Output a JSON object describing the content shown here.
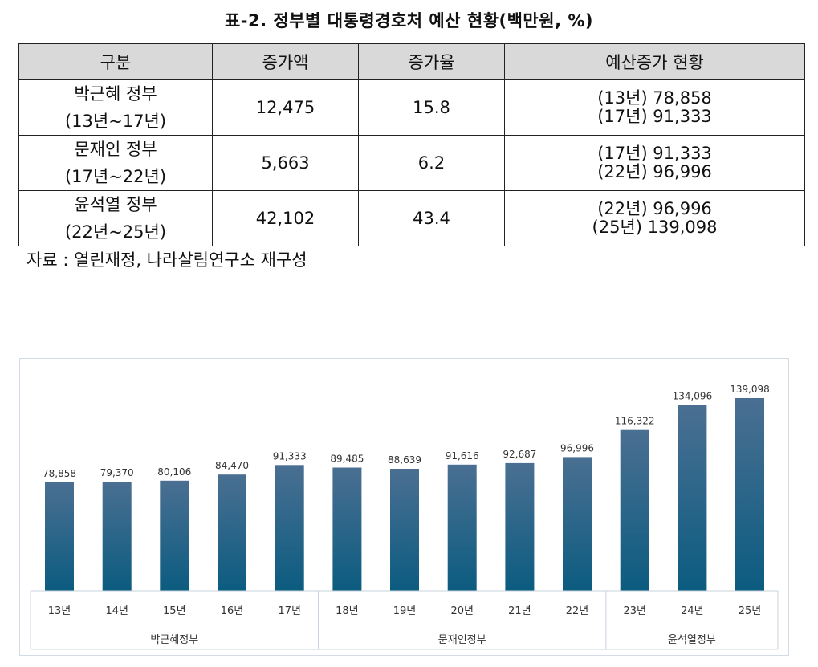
{
  "title": "표-2. 정부별 대통령경호처 예산 현황(백만원, %)",
  "table": {
    "headers": [
      "구분",
      "증가액",
      "증가율",
      "예산증가 현황"
    ],
    "rows": [
      {
        "gov": "박근혜 정부",
        "period": "(13년~17년)",
        "increase": "12,475",
        "rate": "15.8",
        "status1": "(13년) 78,858",
        "status2": "(17년) 91,333"
      },
      {
        "gov": "문재인 정부",
        "period": "(17년~22년)",
        "increase": "5,663",
        "rate": "6.2",
        "status1": "(17년) 91,333",
        "status2": "(22년) 96,996"
      },
      {
        "gov": "윤석열 정부",
        "period": "(22년~25년)",
        "increase": "42,102",
        "rate": "43.4",
        "status1": "(22년) 96,996",
        "status2": "(25년) 139,098"
      }
    ]
  },
  "source": "자료 : 열린재정, 나라살림연구소 재구성",
  "chart_data": {
    "type": "bar",
    "categories": [
      "13년",
      "14년",
      "15년",
      "16년",
      "17년",
      "18년",
      "19년",
      "20년",
      "21년",
      "22년",
      "23년",
      "24년",
      "25년"
    ],
    "values": [
      78858,
      79370,
      80106,
      84470,
      91333,
      89485,
      88639,
      91616,
      92687,
      96996,
      116322,
      134096,
      139098
    ],
    "data_labels": [
      "78,858",
      "79,370",
      "80,106",
      "84,470",
      "91,333",
      "89,485",
      "88,639",
      "91,616",
      "92,687",
      "96,996",
      "116,322",
      "134,096",
      "139,098"
    ],
    "groups": [
      {
        "label": "박근혜정부",
        "start": 0,
        "end": 4
      },
      {
        "label": "문재인정부",
        "start": 5,
        "end": 9
      },
      {
        "label": "윤석열정부",
        "start": 10,
        "end": 12
      }
    ],
    "ylim": [
      0,
      150000
    ],
    "grid": false,
    "legend": "none",
    "bar_color_top": "#4a6f92",
    "bar_color_bottom": "#0b5c80"
  }
}
